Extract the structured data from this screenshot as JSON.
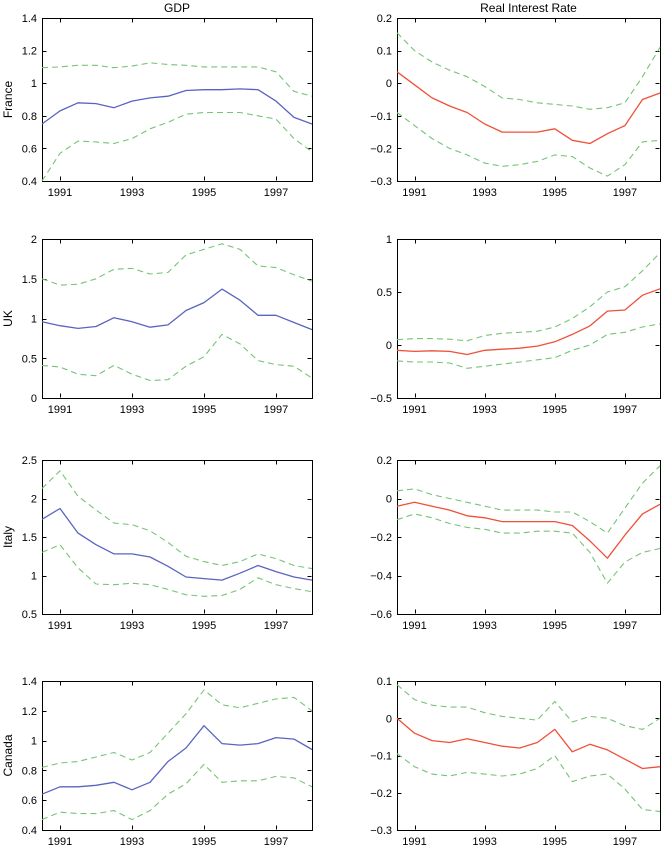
{
  "figure": {
    "column_titles": [
      "GDP",
      "Real Interest Rate"
    ],
    "row_labels": [
      "France",
      "UK",
      "Italy",
      "Canada"
    ],
    "x_tick_labels": [
      "1991",
      "1993",
      "1995",
      "1997"
    ],
    "colors": {
      "gdp": "#5a64c0",
      "rate": "#ef5038",
      "band": "#76c476",
      "axis": "#000000",
      "background": "#ffffff"
    }
  },
  "chart_data": [
    {
      "type": "line",
      "title": "GDP",
      "row_label": "France",
      "x": [
        1990.5,
        1991,
        1991.5,
        1992,
        1992.5,
        1993,
        1993.5,
        1994,
        1994.5,
        1995,
        1995.5,
        1996,
        1996.5,
        1997,
        1997.5,
        1998
      ],
      "series": [
        {
          "name": "point-estimate",
          "style": "solid",
          "color_key": "gdp",
          "values": [
            0.75,
            0.83,
            0.88,
            0.875,
            0.85,
            0.89,
            0.91,
            0.92,
            0.955,
            0.96,
            0.96,
            0.965,
            0.96,
            0.89,
            0.79,
            0.75
          ]
        },
        {
          "name": "upper-confidence-band",
          "style": "dashed",
          "color_key": "band",
          "values": [
            1.095,
            1.1,
            1.11,
            1.11,
            1.095,
            1.105,
            1.125,
            1.115,
            1.11,
            1.1,
            1.1,
            1.1,
            1.1,
            1.07,
            0.95,
            0.92
          ]
        },
        {
          "name": "lower-confidence-band",
          "style": "dashed",
          "color_key": "band",
          "values": [
            0.4,
            0.57,
            0.645,
            0.64,
            0.63,
            0.66,
            0.72,
            0.76,
            0.81,
            0.82,
            0.82,
            0.82,
            0.8,
            0.78,
            0.66,
            0.58
          ]
        }
      ],
      "xlim": [
        1990.5,
        1998
      ],
      "ylim": [
        0.4,
        1.4
      ],
      "xticks": [
        1991,
        1993,
        1995,
        1997
      ],
      "xtick_labels": [
        "1991",
        "1993",
        "1995",
        "1997"
      ],
      "yticks": [
        0.4,
        0.6,
        0.8,
        1,
        1.2,
        1.4
      ],
      "ytick_labels": [
        "0.4",
        "0.6",
        "0.8",
        "1",
        "1.2",
        "1.4"
      ],
      "grid": false,
      "legend": "none"
    },
    {
      "type": "line",
      "title": "Real Interest Rate",
      "row_label": "",
      "x": [
        1990.5,
        1991,
        1991.5,
        1992,
        1992.5,
        1993,
        1993.5,
        1994,
        1994.5,
        1995,
        1995.5,
        1996,
        1996.5,
        1997,
        1997.5,
        1998
      ],
      "series": [
        {
          "name": "point-estimate",
          "style": "solid",
          "color_key": "rate",
          "values": [
            0.035,
            -0.005,
            -0.045,
            -0.07,
            -0.09,
            -0.125,
            -0.15,
            -0.15,
            -0.15,
            -0.14,
            -0.175,
            -0.185,
            -0.155,
            -0.13,
            -0.05,
            -0.03
          ]
        },
        {
          "name": "upper-confidence-band",
          "style": "dashed",
          "color_key": "band",
          "values": [
            0.155,
            0.1,
            0.065,
            0.04,
            0.02,
            -0.01,
            -0.045,
            -0.05,
            -0.06,
            -0.065,
            -0.07,
            -0.08,
            -0.075,
            -0.06,
            0.02,
            0.11
          ]
        },
        {
          "name": "lower-confidence-band",
          "style": "dashed",
          "color_key": "band",
          "values": [
            -0.09,
            -0.13,
            -0.17,
            -0.2,
            -0.22,
            -0.245,
            -0.255,
            -0.25,
            -0.24,
            -0.22,
            -0.225,
            -0.26,
            -0.285,
            -0.25,
            -0.18,
            -0.175
          ]
        }
      ],
      "xlim": [
        1990.5,
        1998
      ],
      "ylim": [
        -0.3,
        0.2
      ],
      "xticks": [
        1991,
        1993,
        1995,
        1997
      ],
      "xtick_labels": [
        "1991",
        "1993",
        "1995",
        "1997"
      ],
      "yticks": [
        -0.3,
        -0.2,
        -0.1,
        0,
        0.1,
        0.2
      ],
      "ytick_labels": [
        "−0.3",
        "−0.2",
        "−0.1",
        "0",
        "0.1",
        "0.2"
      ],
      "grid": false,
      "legend": "none"
    },
    {
      "type": "line",
      "title": "",
      "row_label": "UK",
      "x": [
        1990.5,
        1991,
        1991.5,
        1992,
        1992.5,
        1993,
        1993.5,
        1994,
        1994.5,
        1995,
        1995.5,
        1996,
        1996.5,
        1997,
        1997.5,
        1998
      ],
      "series": [
        {
          "name": "point-estimate",
          "style": "solid",
          "color_key": "gdp",
          "values": [
            0.96,
            0.91,
            0.875,
            0.9,
            1.01,
            0.96,
            0.89,
            0.92,
            1.1,
            1.2,
            1.37,
            1.23,
            1.04,
            1.04,
            0.95,
            0.86
          ]
        },
        {
          "name": "upper-confidence-band",
          "style": "dashed",
          "color_key": "band",
          "values": [
            1.5,
            1.42,
            1.43,
            1.5,
            1.62,
            1.63,
            1.56,
            1.58,
            1.8,
            1.87,
            1.94,
            1.87,
            1.66,
            1.64,
            1.55,
            1.47
          ]
        },
        {
          "name": "lower-confidence-band",
          "style": "dashed",
          "color_key": "band",
          "values": [
            0.41,
            0.39,
            0.3,
            0.28,
            0.41,
            0.3,
            0.22,
            0.23,
            0.4,
            0.52,
            0.8,
            0.68,
            0.47,
            0.42,
            0.4,
            0.25
          ]
        }
      ],
      "xlim": [
        1990.5,
        1998
      ],
      "ylim": [
        0,
        2
      ],
      "xticks": [
        1991,
        1993,
        1995,
        1997
      ],
      "xtick_labels": [
        "1991",
        "1993",
        "1995",
        "1997"
      ],
      "yticks": [
        0,
        0.5,
        1,
        1.5,
        2
      ],
      "ytick_labels": [
        "0",
        "0.5",
        "1",
        "1.5",
        "2"
      ],
      "grid": false,
      "legend": "none"
    },
    {
      "type": "line",
      "title": "",
      "row_label": "",
      "x": [
        1990.5,
        1991,
        1991.5,
        1992,
        1992.5,
        1993,
        1993.5,
        1994,
        1994.5,
        1995,
        1995.5,
        1996,
        1996.5,
        1997,
        1997.5,
        1998
      ],
      "series": [
        {
          "name": "point-estimate",
          "style": "solid",
          "color_key": "rate",
          "values": [
            -0.05,
            -0.06,
            -0.055,
            -0.06,
            -0.09,
            -0.05,
            -0.04,
            -0.03,
            -0.01,
            0.03,
            0.1,
            0.18,
            0.32,
            0.33,
            0.47,
            0.53
          ]
        },
        {
          "name": "upper-confidence-band",
          "style": "dashed",
          "color_key": "band",
          "values": [
            0.05,
            0.06,
            0.06,
            0.055,
            0.04,
            0.09,
            0.11,
            0.12,
            0.13,
            0.17,
            0.25,
            0.36,
            0.5,
            0.55,
            0.7,
            0.87
          ]
        },
        {
          "name": "lower-confidence-band",
          "style": "dashed",
          "color_key": "band",
          "values": [
            -0.15,
            -0.16,
            -0.16,
            -0.17,
            -0.22,
            -0.2,
            -0.18,
            -0.16,
            -0.14,
            -0.12,
            -0.05,
            0.0,
            0.1,
            0.12,
            0.17,
            0.2
          ]
        }
      ],
      "xlim": [
        1990.5,
        1998
      ],
      "ylim": [
        -0.5,
        1
      ],
      "xticks": [
        1991,
        1993,
        1995,
        1997
      ],
      "xtick_labels": [
        "1991",
        "1993",
        "1995",
        "1997"
      ],
      "yticks": [
        -0.5,
        0,
        0.5,
        1
      ],
      "ytick_labels": [
        "−0.5",
        "0",
        "0.5",
        "1"
      ],
      "grid": false,
      "legend": "none"
    },
    {
      "type": "line",
      "title": "",
      "row_label": "Italy",
      "x": [
        1990.5,
        1991,
        1991.5,
        1992,
        1992.5,
        1993,
        1993.5,
        1994,
        1994.5,
        1995,
        1995.5,
        1996,
        1996.5,
        1997,
        1997.5,
        1998
      ],
      "series": [
        {
          "name": "point-estimate",
          "style": "solid",
          "color_key": "gdp",
          "values": [
            1.73,
            1.87,
            1.55,
            1.4,
            1.28,
            1.28,
            1.24,
            1.12,
            0.98,
            0.96,
            0.94,
            1.03,
            1.13,
            1.05,
            0.98,
            0.94
          ]
        },
        {
          "name": "upper-confidence-band",
          "style": "dashed",
          "color_key": "band",
          "values": [
            2.13,
            2.36,
            2.03,
            1.85,
            1.68,
            1.66,
            1.58,
            1.43,
            1.25,
            1.18,
            1.13,
            1.18,
            1.28,
            1.22,
            1.13,
            1.09
          ]
        },
        {
          "name": "lower-confidence-band",
          "style": "dashed",
          "color_key": "band",
          "values": [
            1.3,
            1.4,
            1.1,
            0.89,
            0.88,
            0.9,
            0.88,
            0.82,
            0.75,
            0.73,
            0.74,
            0.82,
            0.97,
            0.88,
            0.83,
            0.79
          ]
        }
      ],
      "xlim": [
        1990.5,
        1998
      ],
      "ylim": [
        0.5,
        2.5
      ],
      "xticks": [
        1991,
        1993,
        1995,
        1997
      ],
      "xtick_labels": [
        "1991",
        "1993",
        "1995",
        "1997"
      ],
      "yticks": [
        0.5,
        1,
        1.5,
        2,
        2.5
      ],
      "ytick_labels": [
        "0.5",
        "1",
        "1.5",
        "2",
        "2.5"
      ],
      "grid": false,
      "legend": "none"
    },
    {
      "type": "line",
      "title": "",
      "row_label": "",
      "x": [
        1990.5,
        1991,
        1991.5,
        1992,
        1992.5,
        1993,
        1993.5,
        1994,
        1994.5,
        1995,
        1995.5,
        1996,
        1996.5,
        1997,
        1997.5,
        1998
      ],
      "series": [
        {
          "name": "point-estimate",
          "style": "solid",
          "color_key": "rate",
          "values": [
            -0.04,
            -0.02,
            -0.04,
            -0.06,
            -0.09,
            -0.1,
            -0.12,
            -0.12,
            -0.12,
            -0.12,
            -0.14,
            -0.22,
            -0.31,
            -0.19,
            -0.08,
            -0.03
          ]
        },
        {
          "name": "upper-confidence-band",
          "style": "dashed",
          "color_key": "band",
          "values": [
            0.04,
            0.05,
            0.02,
            0.0,
            -0.02,
            -0.04,
            -0.06,
            -0.06,
            -0.06,
            -0.07,
            -0.07,
            -0.12,
            -0.18,
            -0.05,
            0.08,
            0.17
          ]
        },
        {
          "name": "lower-confidence-band",
          "style": "dashed",
          "color_key": "band",
          "values": [
            -0.11,
            -0.08,
            -0.1,
            -0.13,
            -0.15,
            -0.16,
            -0.18,
            -0.18,
            -0.17,
            -0.17,
            -0.18,
            -0.28,
            -0.44,
            -0.33,
            -0.28,
            -0.26
          ]
        }
      ],
      "xlim": [
        1990.5,
        1998
      ],
      "ylim": [
        -0.6,
        0.2
      ],
      "xticks": [
        1991,
        1993,
        1995,
        1997
      ],
      "xtick_labels": [
        "1991",
        "1993",
        "1995",
        "1997"
      ],
      "yticks": [
        -0.6,
        -0.4,
        -0.2,
        0,
        0.2
      ],
      "ytick_labels": [
        "−0.6",
        "−0.4",
        "−0.2",
        "0",
        "0.2"
      ],
      "grid": false,
      "legend": "none"
    },
    {
      "type": "line",
      "title": "",
      "row_label": "Canada",
      "x": [
        1990.5,
        1991,
        1991.5,
        1992,
        1992.5,
        1993,
        1993.5,
        1994,
        1994.5,
        1995,
        1995.5,
        1996,
        1996.5,
        1997,
        1997.5,
        1998
      ],
      "series": [
        {
          "name": "point-estimate",
          "style": "solid",
          "color_key": "gdp",
          "values": [
            0.64,
            0.69,
            0.69,
            0.7,
            0.72,
            0.67,
            0.72,
            0.86,
            0.95,
            1.1,
            0.98,
            0.97,
            0.98,
            1.02,
            1.01,
            0.94
          ]
        },
        {
          "name": "upper-confidence-band",
          "style": "dashed",
          "color_key": "band",
          "values": [
            0.82,
            0.85,
            0.86,
            0.89,
            0.92,
            0.87,
            0.92,
            1.05,
            1.18,
            1.34,
            1.24,
            1.22,
            1.25,
            1.28,
            1.29,
            1.2
          ]
        },
        {
          "name": "lower-confidence-band",
          "style": "dashed",
          "color_key": "band",
          "values": [
            0.47,
            0.52,
            0.51,
            0.51,
            0.53,
            0.47,
            0.53,
            0.64,
            0.71,
            0.84,
            0.72,
            0.73,
            0.73,
            0.76,
            0.75,
            0.69
          ]
        }
      ],
      "xlim": [
        1990.5,
        1998
      ],
      "ylim": [
        0.4,
        1.4
      ],
      "xticks": [
        1991,
        1993,
        1995,
        1997
      ],
      "xtick_labels": [
        "1991",
        "1993",
        "1995",
        "1997"
      ],
      "yticks": [
        0.4,
        0.6,
        0.8,
        1,
        1.2,
        1.4
      ],
      "ytick_labels": [
        "0.4",
        "0.6",
        "0.8",
        "1",
        "1.2",
        "1.4"
      ],
      "grid": false,
      "legend": "none"
    },
    {
      "type": "line",
      "title": "",
      "row_label": "",
      "x": [
        1990.5,
        1991,
        1991.5,
        1992,
        1992.5,
        1993,
        1993.5,
        1994,
        1994.5,
        1995,
        1995.5,
        1996,
        1996.5,
        1997,
        1997.5,
        1998
      ],
      "series": [
        {
          "name": "point-estimate",
          "style": "solid",
          "color_key": "rate",
          "values": [
            0.0,
            -0.04,
            -0.06,
            -0.065,
            -0.055,
            -0.065,
            -0.075,
            -0.08,
            -0.065,
            -0.03,
            -0.09,
            -0.07,
            -0.085,
            -0.11,
            -0.135,
            -0.13
          ]
        },
        {
          "name": "upper-confidence-band",
          "style": "dashed",
          "color_key": "band",
          "values": [
            0.09,
            0.05,
            0.035,
            0.03,
            0.03,
            0.015,
            0.005,
            0.0,
            -0.005,
            0.045,
            -0.01,
            0.005,
            0.0,
            -0.02,
            -0.03,
            0.0
          ]
        },
        {
          "name": "lower-confidence-band",
          "style": "dashed",
          "color_key": "band",
          "values": [
            -0.095,
            -0.13,
            -0.15,
            -0.155,
            -0.145,
            -0.15,
            -0.155,
            -0.15,
            -0.135,
            -0.1,
            -0.17,
            -0.155,
            -0.15,
            -0.19,
            -0.245,
            -0.25
          ]
        }
      ],
      "xlim": [
        1990.5,
        1998
      ],
      "ylim": [
        -0.3,
        0.1
      ],
      "xticks": [
        1991,
        1993,
        1995,
        1997
      ],
      "xtick_labels": [
        "1991",
        "1993",
        "1995",
        "1997"
      ],
      "yticks": [
        -0.3,
        -0.2,
        -0.1,
        0,
        0.1
      ],
      "ytick_labels": [
        "−0.3",
        "−0.2",
        "−0.1",
        "0",
        "0.1"
      ],
      "grid": false,
      "legend": "none"
    }
  ]
}
